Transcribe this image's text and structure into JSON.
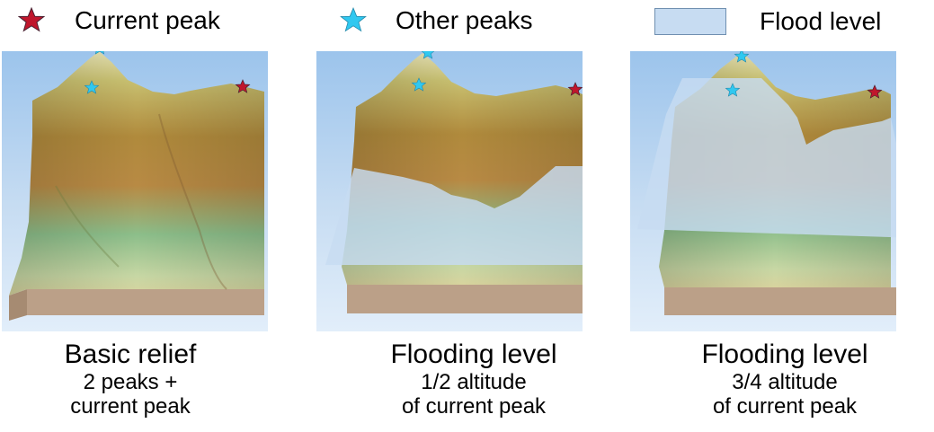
{
  "legend": {
    "current_peak": {
      "label": "Current peak",
      "icon": "red-star-icon",
      "color": "#c0162c"
    },
    "other_peaks": {
      "label": "Other peaks",
      "icon": "cyan-star-icon",
      "color": "#30c8f0"
    },
    "flood_level": {
      "label": "Flood level",
      "icon": "flood-swatch",
      "color": "#c7dcf2"
    }
  },
  "panels": [
    {
      "title": "Basic relief",
      "line1": "2 peaks +",
      "line2": "current peak"
    },
    {
      "title": "Flooding level",
      "line1": "1/2 altitude",
      "line2": "of current peak",
      "flood_fraction": 0.5
    },
    {
      "title": "Flooding level",
      "line1": "3/4 altitude",
      "line2": "of current peak",
      "flood_fraction": 0.75
    }
  ]
}
